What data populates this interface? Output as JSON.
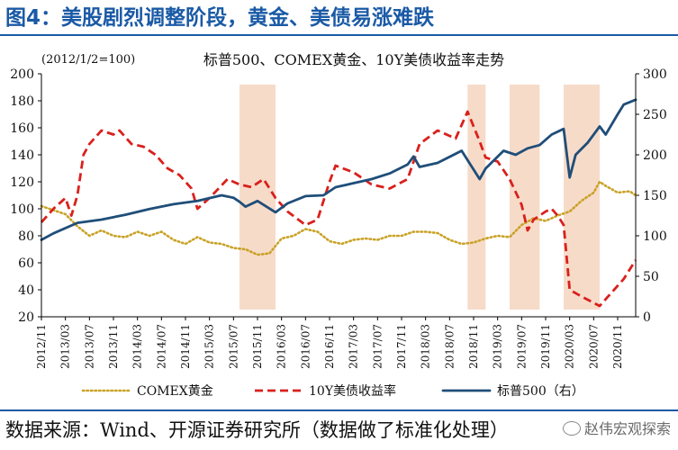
{
  "figure": {
    "title": "图4：美股剧烈调整阶段，黄金、美债易涨难跌",
    "source": "数据来源：Wind、开源证券研究所（数据做了标准化处理）",
    "watermark": "赵伟宏观探索"
  },
  "colors": {
    "gold": "#c9a227",
    "yield": "#d9201c",
    "sp500": "#1f4e79",
    "band": "#f6d5bf",
    "title": "#1a5aa6"
  },
  "chart_data": {
    "type": "line",
    "title": "标普500、COMEX黄金、10Y美债收益率走势",
    "left_axis_label": "(2012/1/2=100)",
    "ylim_left": [
      20,
      200
    ],
    "ylim_right": [
      0,
      300
    ],
    "left_ticks": [
      "20",
      "40",
      "60",
      "80",
      "100",
      "120",
      "140",
      "160",
      "180",
      "200"
    ],
    "right_ticks": [
      "0",
      "50",
      "100",
      "150",
      "200",
      "250",
      "300"
    ],
    "x_tick_labels": [
      "2012/11",
      "2013/03",
      "2013/07",
      "2013/11",
      "2014/03",
      "2014/07",
      "2014/11",
      "2015/03",
      "2015/07",
      "2015/11",
      "2016/03",
      "2016/07",
      "2016/11",
      "2017/03",
      "2017/07",
      "2017/11",
      "2018/03",
      "2018/07",
      "2018/11",
      "2019/03",
      "2019/07",
      "2019/11",
      "2020/03",
      "2020/07",
      "2020/11"
    ],
    "shaded_periods": [
      [
        "2015/08",
        "2016/02"
      ],
      [
        "2018/10",
        "2019/01"
      ],
      [
        "2019/05",
        "2019/10"
      ],
      [
        "2020/02",
        "2020/08"
      ]
    ],
    "series": [
      {
        "name": "COMEX黄金",
        "axis": "left",
        "style": "dotted",
        "x": [
          "2012/11",
          "2013/01",
          "2013/03",
          "2013/05",
          "2013/07",
          "2013/09",
          "2013/11",
          "2014/01",
          "2014/03",
          "2014/05",
          "2014/07",
          "2014/09",
          "2014/11",
          "2015/01",
          "2015/03",
          "2015/05",
          "2015/07",
          "2015/09",
          "2015/11",
          "2016/01",
          "2016/03",
          "2016/05",
          "2016/07",
          "2016/09",
          "2016/11",
          "2017/01",
          "2017/03",
          "2017/05",
          "2017/07",
          "2017/09",
          "2017/11",
          "2018/01",
          "2018/03",
          "2018/05",
          "2018/07",
          "2018/09",
          "2018/11",
          "2019/01",
          "2019/03",
          "2019/05",
          "2019/07",
          "2019/09",
          "2019/11",
          "2020/01",
          "2020/03",
          "2020/05",
          "2020/07",
          "2020/08",
          "2020/09",
          "2020/11",
          "2021/01",
          "2021/02"
        ],
        "values": [
          102,
          99,
          96,
          87,
          80,
          84,
          80,
          79,
          83,
          80,
          83,
          77,
          74,
          79,
          75,
          74,
          71,
          70,
          66,
          67,
          78,
          80,
          85,
          83,
          76,
          74,
          77,
          78,
          77,
          80,
          80,
          83,
          83,
          82,
          77,
          74,
          75,
          78,
          80,
          79,
          88,
          93,
          91,
          95,
          98,
          106,
          112,
          120,
          117,
          112,
          113,
          110
        ]
      },
      {
        "name": "10Y美债收益率",
        "axis": "left",
        "style": "dashed",
        "x": [
          "2012/11",
          "2013/01",
          "2013/03",
          "2013/04",
          "2013/05",
          "2013/06",
          "2013/07",
          "2013/09",
          "2013/11",
          "2013/12",
          "2014/02",
          "2014/04",
          "2014/06",
          "2014/08",
          "2014/10",
          "2014/12",
          "2015/01",
          "2015/03",
          "2015/06",
          "2015/08",
          "2015/10",
          "2015/12",
          "2016/02",
          "2016/04",
          "2016/07",
          "2016/09",
          "2016/11",
          "2016/12",
          "2017/03",
          "2017/06",
          "2017/09",
          "2017/12",
          "2018/02",
          "2018/05",
          "2018/08",
          "2018/10",
          "2018/12",
          "2019/01",
          "2019/03",
          "2019/05",
          "2019/07",
          "2019/08",
          "2019/09",
          "2019/11",
          "2019/12",
          "2020/01",
          "2020/02",
          "2020/03",
          "2020/05",
          "2020/08",
          "2020/10",
          "2020/12",
          "2021/02"
        ],
        "values": [
          90,
          100,
          108,
          95,
          110,
          140,
          148,
          158,
          155,
          158,
          148,
          146,
          140,
          130,
          125,
          115,
          100,
          108,
          122,
          118,
          116,
          122,
          108,
          98,
          88,
          92,
          120,
          132,
          127,
          118,
          115,
          122,
          148,
          158,
          152,
          172,
          150,
          138,
          135,
          122,
          103,
          84,
          92,
          98,
          100,
          95,
          88,
          40,
          35,
          28,
          38,
          48,
          62
        ]
      },
      {
        "name": "标普500（右）",
        "axis": "right",
        "style": "solid",
        "x": [
          "2012/11",
          "2013/01",
          "2013/05",
          "2013/09",
          "2014/01",
          "2014/05",
          "2014/09",
          "2015/01",
          "2015/05",
          "2015/07",
          "2015/08",
          "2015/09",
          "2015/11",
          "2016/02",
          "2016/04",
          "2016/07",
          "2016/10",
          "2016/12",
          "2017/03",
          "2017/06",
          "2017/09",
          "2017/12",
          "2018/01",
          "2018/02",
          "2018/05",
          "2018/09",
          "2018/12",
          "2019/01",
          "2019/04",
          "2019/06",
          "2019/08",
          "2019/10",
          "2019/12",
          "2020/02",
          "2020/03",
          "2020/04",
          "2020/06",
          "2020/08",
          "2020/09",
          "2020/11",
          "2020/12",
          "2021/02"
        ],
        "values": [
          95,
          103,
          116,
          120,
          126,
          133,
          139,
          143,
          150,
          147,
          142,
          136,
          143,
          129,
          140,
          149,
          150,
          160,
          165,
          170,
          177,
          188,
          198,
          185,
          190,
          205,
          170,
          183,
          205,
          200,
          208,
          212,
          225,
          232,
          172,
          200,
          215,
          235,
          225,
          250,
          262,
          268
        ]
      }
    ]
  }
}
